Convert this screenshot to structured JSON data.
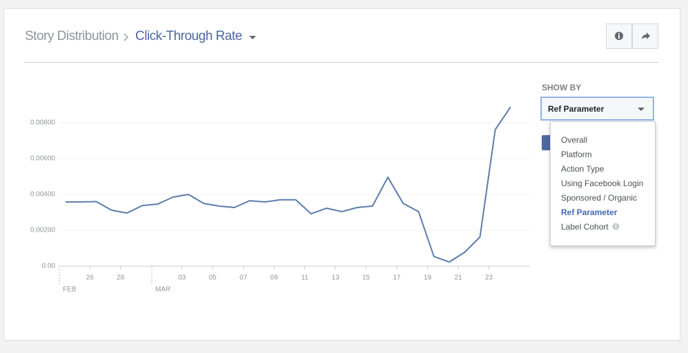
{
  "header": {
    "breadcrumb": [
      "Story Distribution",
      "Click-Through Rate"
    ]
  },
  "chart_data": {
    "type": "line",
    "categories": [
      null,
      "26",
      null,
      "28",
      null,
      null,
      null,
      "03",
      null,
      "05",
      null,
      "07",
      null,
      "09",
      null,
      "11",
      null,
      "13",
      null,
      "15",
      null,
      "17",
      null,
      "19",
      null,
      "21",
      null,
      "23",
      null,
      null
    ],
    "month_labels": [
      "FEB",
      "MAR"
    ],
    "series": [
      {
        "color": "#5b7bab",
        "values": [
          0.00358,
          0.00358,
          0.0036,
          0.00312,
          0.00296,
          0.00338,
          0.00346,
          0.00385,
          0.004,
          0.0035,
          0.00335,
          0.00327,
          0.00365,
          0.00358,
          0.0037,
          0.0037,
          0.00292,
          0.00323,
          0.00304,
          0.00327,
          0.00335,
          0.00496,
          0.0035,
          0.00304,
          0.00054,
          0.00023,
          0.00077,
          0.00162,
          0.00762,
          0.00888
        ]
      }
    ],
    "ylim": [
      0,
      0.009
    ],
    "yticks": [
      {
        "value": 0,
        "label": "0.00"
      },
      {
        "value": 0.002,
        "label": "0.00200"
      },
      {
        "value": 0.004,
        "label": "0.00400"
      },
      {
        "value": 0.006,
        "label": "0.00600"
      },
      {
        "value": 0.008,
        "label": "0.00800"
      }
    ],
    "grid": true
  },
  "show_by": {
    "label": "SHOW BY",
    "value": "Ref Parameter",
    "options": [
      "Overall",
      "Platform",
      "Action Type",
      "Using Facebook Login",
      "Sponsored / Organic",
      "Ref Parameter",
      "Label Cohort"
    ],
    "selected_index": 5
  }
}
